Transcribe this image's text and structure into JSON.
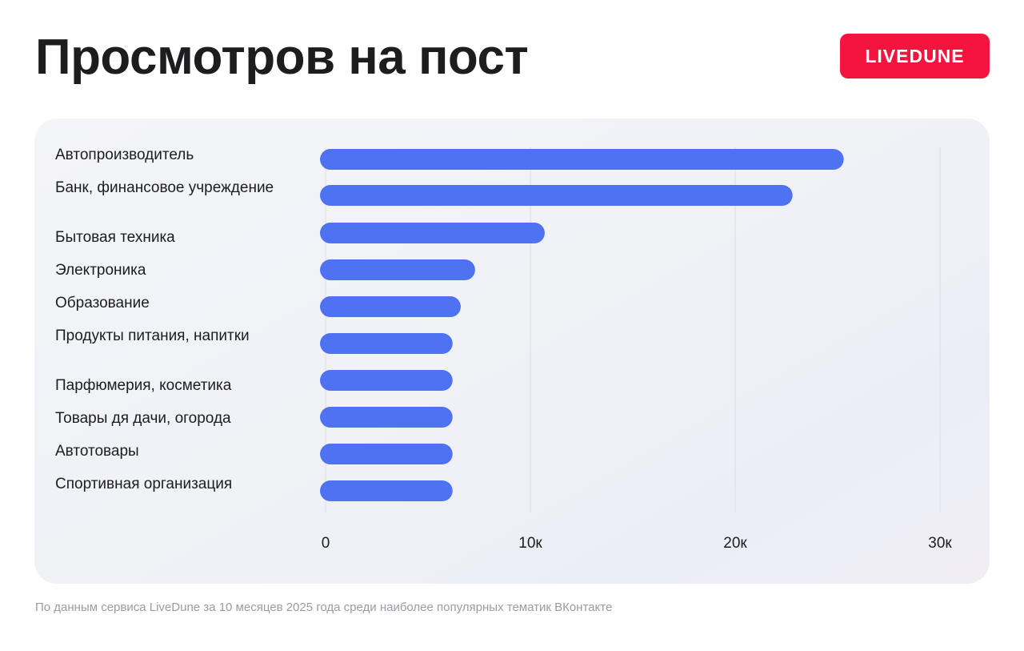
{
  "header": {
    "title": "Просмотров на пост",
    "brand": "LIVEDUNE"
  },
  "colors": {
    "bar": "#4f72f2",
    "brand": "#f5143e",
    "grid": "#dcdee6"
  },
  "chart_data": {
    "type": "bar",
    "orientation": "horizontal",
    "categories": [
      "Автопроизводитель",
      "Банк, финансовое учреждение",
      "Бытовая техника",
      "Электроника",
      "Образование",
      "Продукты питания, напитки",
      "Парфюмерия, косметика",
      "Товары дя дачи, огорода",
      "Автотовары",
      "Спортивная организация"
    ],
    "values": [
      25300,
      22800,
      10700,
      7300,
      6600,
      6200,
      6200,
      6200,
      6200,
      6200
    ],
    "xlim": [
      0,
      30000
    ],
    "xticks": [
      0,
      10000,
      20000,
      30000
    ],
    "xtick_labels": [
      "0",
      "10к",
      "20к",
      "30к"
    ],
    "grid": true,
    "title": "",
    "xlabel": "",
    "ylabel": ""
  },
  "footnote": "По данным сервиса LiveDune за 10 месяцев 2025 года среди наиболее популярных тематик ВКонтакте"
}
